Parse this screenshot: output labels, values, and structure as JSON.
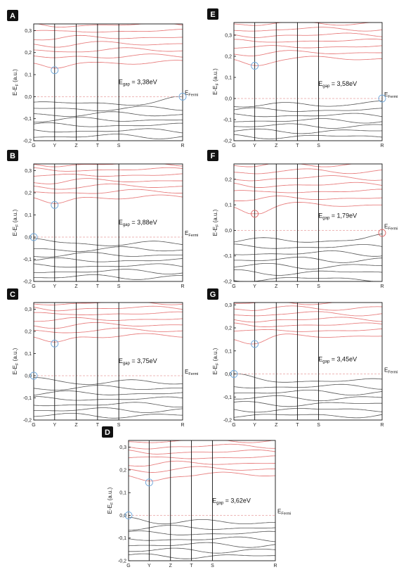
{
  "chart_data": [
    {
      "type": "line",
      "panel": "A",
      "ylabel": "E-E_F (a.u.)",
      "ylim": [
        -0.2,
        0.33
      ],
      "yticks": [
        -0.2,
        -0.1,
        0.0,
        0.1,
        0.2,
        0.3
      ],
      "k_points": [
        "G",
        "Y",
        "Z",
        "T",
        "S",
        "R"
      ],
      "gap_label": "3,38eV",
      "fermi_label": "Fermi",
      "cbm": {
        "k": "Y",
        "energy": 0.12
      },
      "vbm": {
        "k": "R",
        "energy": 0.0
      },
      "colors": {
        "conduction": "#e88080",
        "valence": "#555555",
        "cbm_marker": "#6fa8dc",
        "vbm_marker": "#6fa8dc"
      }
    },
    {
      "type": "line",
      "panel": "B",
      "ylabel": "E-E_F (a.u.)",
      "ylim": [
        -0.2,
        0.33
      ],
      "yticks": [
        -0.2,
        -0.1,
        0.0,
        0.1,
        0.2,
        0.3
      ],
      "k_points": [
        "G",
        "Y",
        "Z",
        "T",
        "S",
        "R"
      ],
      "gap_label": "3,88eV",
      "fermi_label": "Fermi",
      "cbm": {
        "k": "Y",
        "energy": 0.145
      },
      "vbm": {
        "k": "G",
        "energy": 0.0
      },
      "colors": {
        "conduction": "#e88080",
        "valence": "#555555",
        "cbm_marker": "#6fa8dc",
        "vbm_marker": "#6fa8dc"
      }
    },
    {
      "type": "line",
      "panel": "C",
      "ylabel": "E-E_F (a.u.)",
      "ylim": [
        -0.2,
        0.33
      ],
      "yticks": [
        -0.2,
        -0.1,
        0.0,
        0.1,
        0.2,
        0.3
      ],
      "k_points": [
        "G",
        "Y",
        "Z",
        "T",
        "S",
        "R"
      ],
      "gap_label": "3,75eV",
      "fermi_label": "Fermi",
      "cbm": {
        "k": "Y",
        "energy": 0.145
      },
      "vbm": {
        "k": "G",
        "energy": 0.0
      },
      "colors": {
        "conduction": "#e88080",
        "valence": "#555555",
        "cbm_marker": "#6fa8dc",
        "vbm_marker": "#6fa8dc"
      }
    },
    {
      "type": "line",
      "panel": "D",
      "ylabel": "E-E_F (a.u.)",
      "ylim": [
        -0.2,
        0.33
      ],
      "yticks": [
        -0.2,
        -0.1,
        0.0,
        0.1,
        0.2,
        0.3
      ],
      "k_points": [
        "G",
        "Y",
        "Z",
        "T",
        "S",
        "R"
      ],
      "gap_label": "3,62eV",
      "fermi_label": "Fermi",
      "cbm": {
        "k": "Y",
        "energy": 0.145
      },
      "vbm": {
        "k": "G",
        "energy": 0.0
      },
      "colors": {
        "conduction": "#e88080",
        "valence": "#555555",
        "cbm_marker": "#6fa8dc",
        "vbm_marker": "#6fa8dc"
      }
    },
    {
      "type": "line",
      "panel": "E",
      "ylabel": "E-E_F (a.u.)",
      "ylim": [
        -0.2,
        0.36
      ],
      "yticks": [
        -0.2,
        -0.1,
        0.0,
        0.1,
        0.2,
        0.3
      ],
      "k_points": [
        "G",
        "Y",
        "Z",
        "T",
        "S",
        "R"
      ],
      "gap_label": "3,58eV",
      "fermi_label": "Fermi",
      "cbm": {
        "k": "Y",
        "energy": 0.155
      },
      "vbm": {
        "k": "R",
        "energy": 0.0
      },
      "colors": {
        "conduction": "#e88080",
        "valence": "#555555",
        "cbm_marker": "#6fa8dc",
        "vbm_marker": "#6fa8dc"
      }
    },
    {
      "type": "line",
      "panel": "F",
      "ylabel": "E-E_F (a.u.)",
      "ylim": [
        -0.2,
        0.26
      ],
      "yticks": [
        -0.2,
        -0.1,
        0.0,
        0.1,
        0.2
      ],
      "k_points": [
        "G",
        "Y",
        "Z",
        "T",
        "S",
        "R"
      ],
      "gap_label": "1,79eV",
      "fermi_label": "Fermi",
      "cbm": {
        "k": "Y",
        "energy": 0.065
      },
      "vbm": {
        "k": "R",
        "energy": -0.01
      },
      "colors": {
        "conduction": "#e88080",
        "valence": "#555555",
        "cbm_marker": "#e06666",
        "vbm_marker": "#e06666"
      }
    },
    {
      "type": "line",
      "panel": "G",
      "ylabel": "E-E_F (a.u.)",
      "ylim": [
        -0.2,
        0.31
      ],
      "yticks": [
        -0.2,
        -0.1,
        0.0,
        0.1,
        0.2,
        0.3
      ],
      "k_points": [
        "G",
        "Y",
        "Z",
        "T",
        "S",
        "R"
      ],
      "gap_label": "3,45eV",
      "fermi_label": "Fermi",
      "cbm": {
        "k": "Y",
        "energy": 0.13
      },
      "vbm": {
        "k": "G",
        "energy": 0.0
      },
      "colors": {
        "conduction": "#e88080",
        "valence": "#555555",
        "cbm_marker": "#6fa8dc",
        "vbm_marker": "#6fa8dc"
      }
    }
  ]
}
